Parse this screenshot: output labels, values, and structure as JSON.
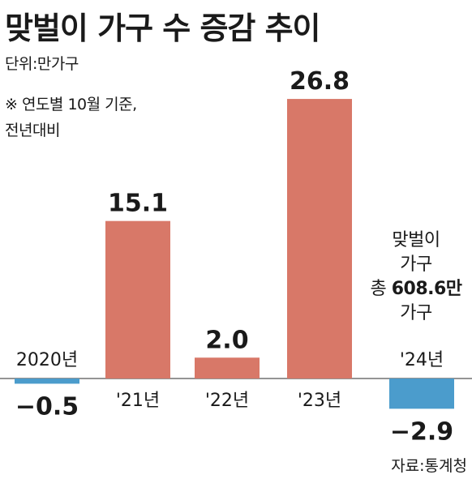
{
  "header": {
    "title": "맞벌이 가구 수 증감 추이",
    "unit": "단위:만가구",
    "note1": "※ 연도별 10월 기준,",
    "note2": "전년대비"
  },
  "annotation": {
    "line1": "맞벌이",
    "line2": "가구",
    "line3_prefix": "총",
    "line3_value": "608.6만",
    "line4": "가구"
  },
  "source": "자료:통계청",
  "colors": {
    "positive": "#d87868",
    "negative": "#4b9ccc",
    "axis": "#555555"
  },
  "chart_data": {
    "type": "bar",
    "title": "맞벌이 가구 수 증감 추이",
    "unit": "만가구",
    "categories": [
      "2020년",
      "'21년",
      "'22년",
      "'23년",
      "'24년"
    ],
    "values": [
      -0.5,
      15.1,
      2.0,
      26.8,
      -2.9
    ],
    "value_labels": [
      "−0.5",
      "15.1",
      "2.0",
      "26.8",
      "−2.9"
    ],
    "ylim": [
      -2.9,
      26.8
    ],
    "grid": false,
    "legend": "none"
  }
}
